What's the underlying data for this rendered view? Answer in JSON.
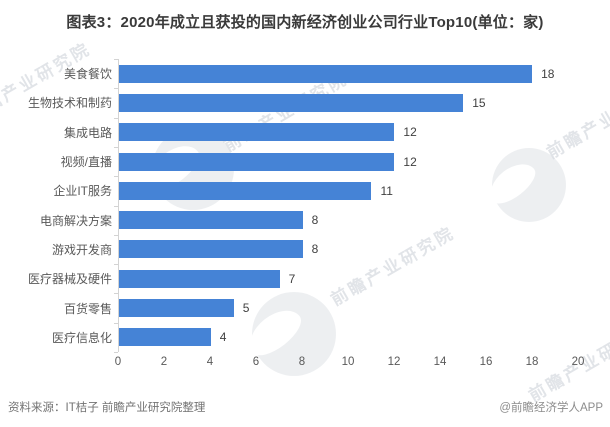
{
  "title": "图表3：2020年成立且获投的国内新经济创业公司行业Top10(单位：家)",
  "chart_data": {
    "type": "bar",
    "orientation": "horizontal",
    "title": "图表3：2020年成立且获投的国内新经济创业公司行业Top10(单位：家)",
    "categories": [
      "美食餐饮",
      "生物技术和制药",
      "集成电路",
      "视频/直播",
      "企业IT服务",
      "电商解决方案",
      "游戏开发商",
      "医疗器械及硬件",
      "百货零售",
      "医疗信息化"
    ],
    "values": [
      18,
      15,
      12,
      12,
      11,
      8,
      8,
      7,
      5,
      4
    ],
    "xlabel": "",
    "ylabel": "",
    "xlim": [
      0,
      20
    ],
    "x_ticks": [
      0,
      2,
      4,
      6,
      8,
      10,
      12,
      14,
      16,
      18,
      20
    ],
    "grid": false,
    "data_labels": true,
    "bar_color": "#4583d6",
    "legend": "none"
  },
  "watermark": {
    "text": "前瞻产业研究院"
  },
  "footer": {
    "source": "资料来源：IT桔子 前瞻产业研究院整理",
    "credit": "@前瞻经济学人APP"
  }
}
